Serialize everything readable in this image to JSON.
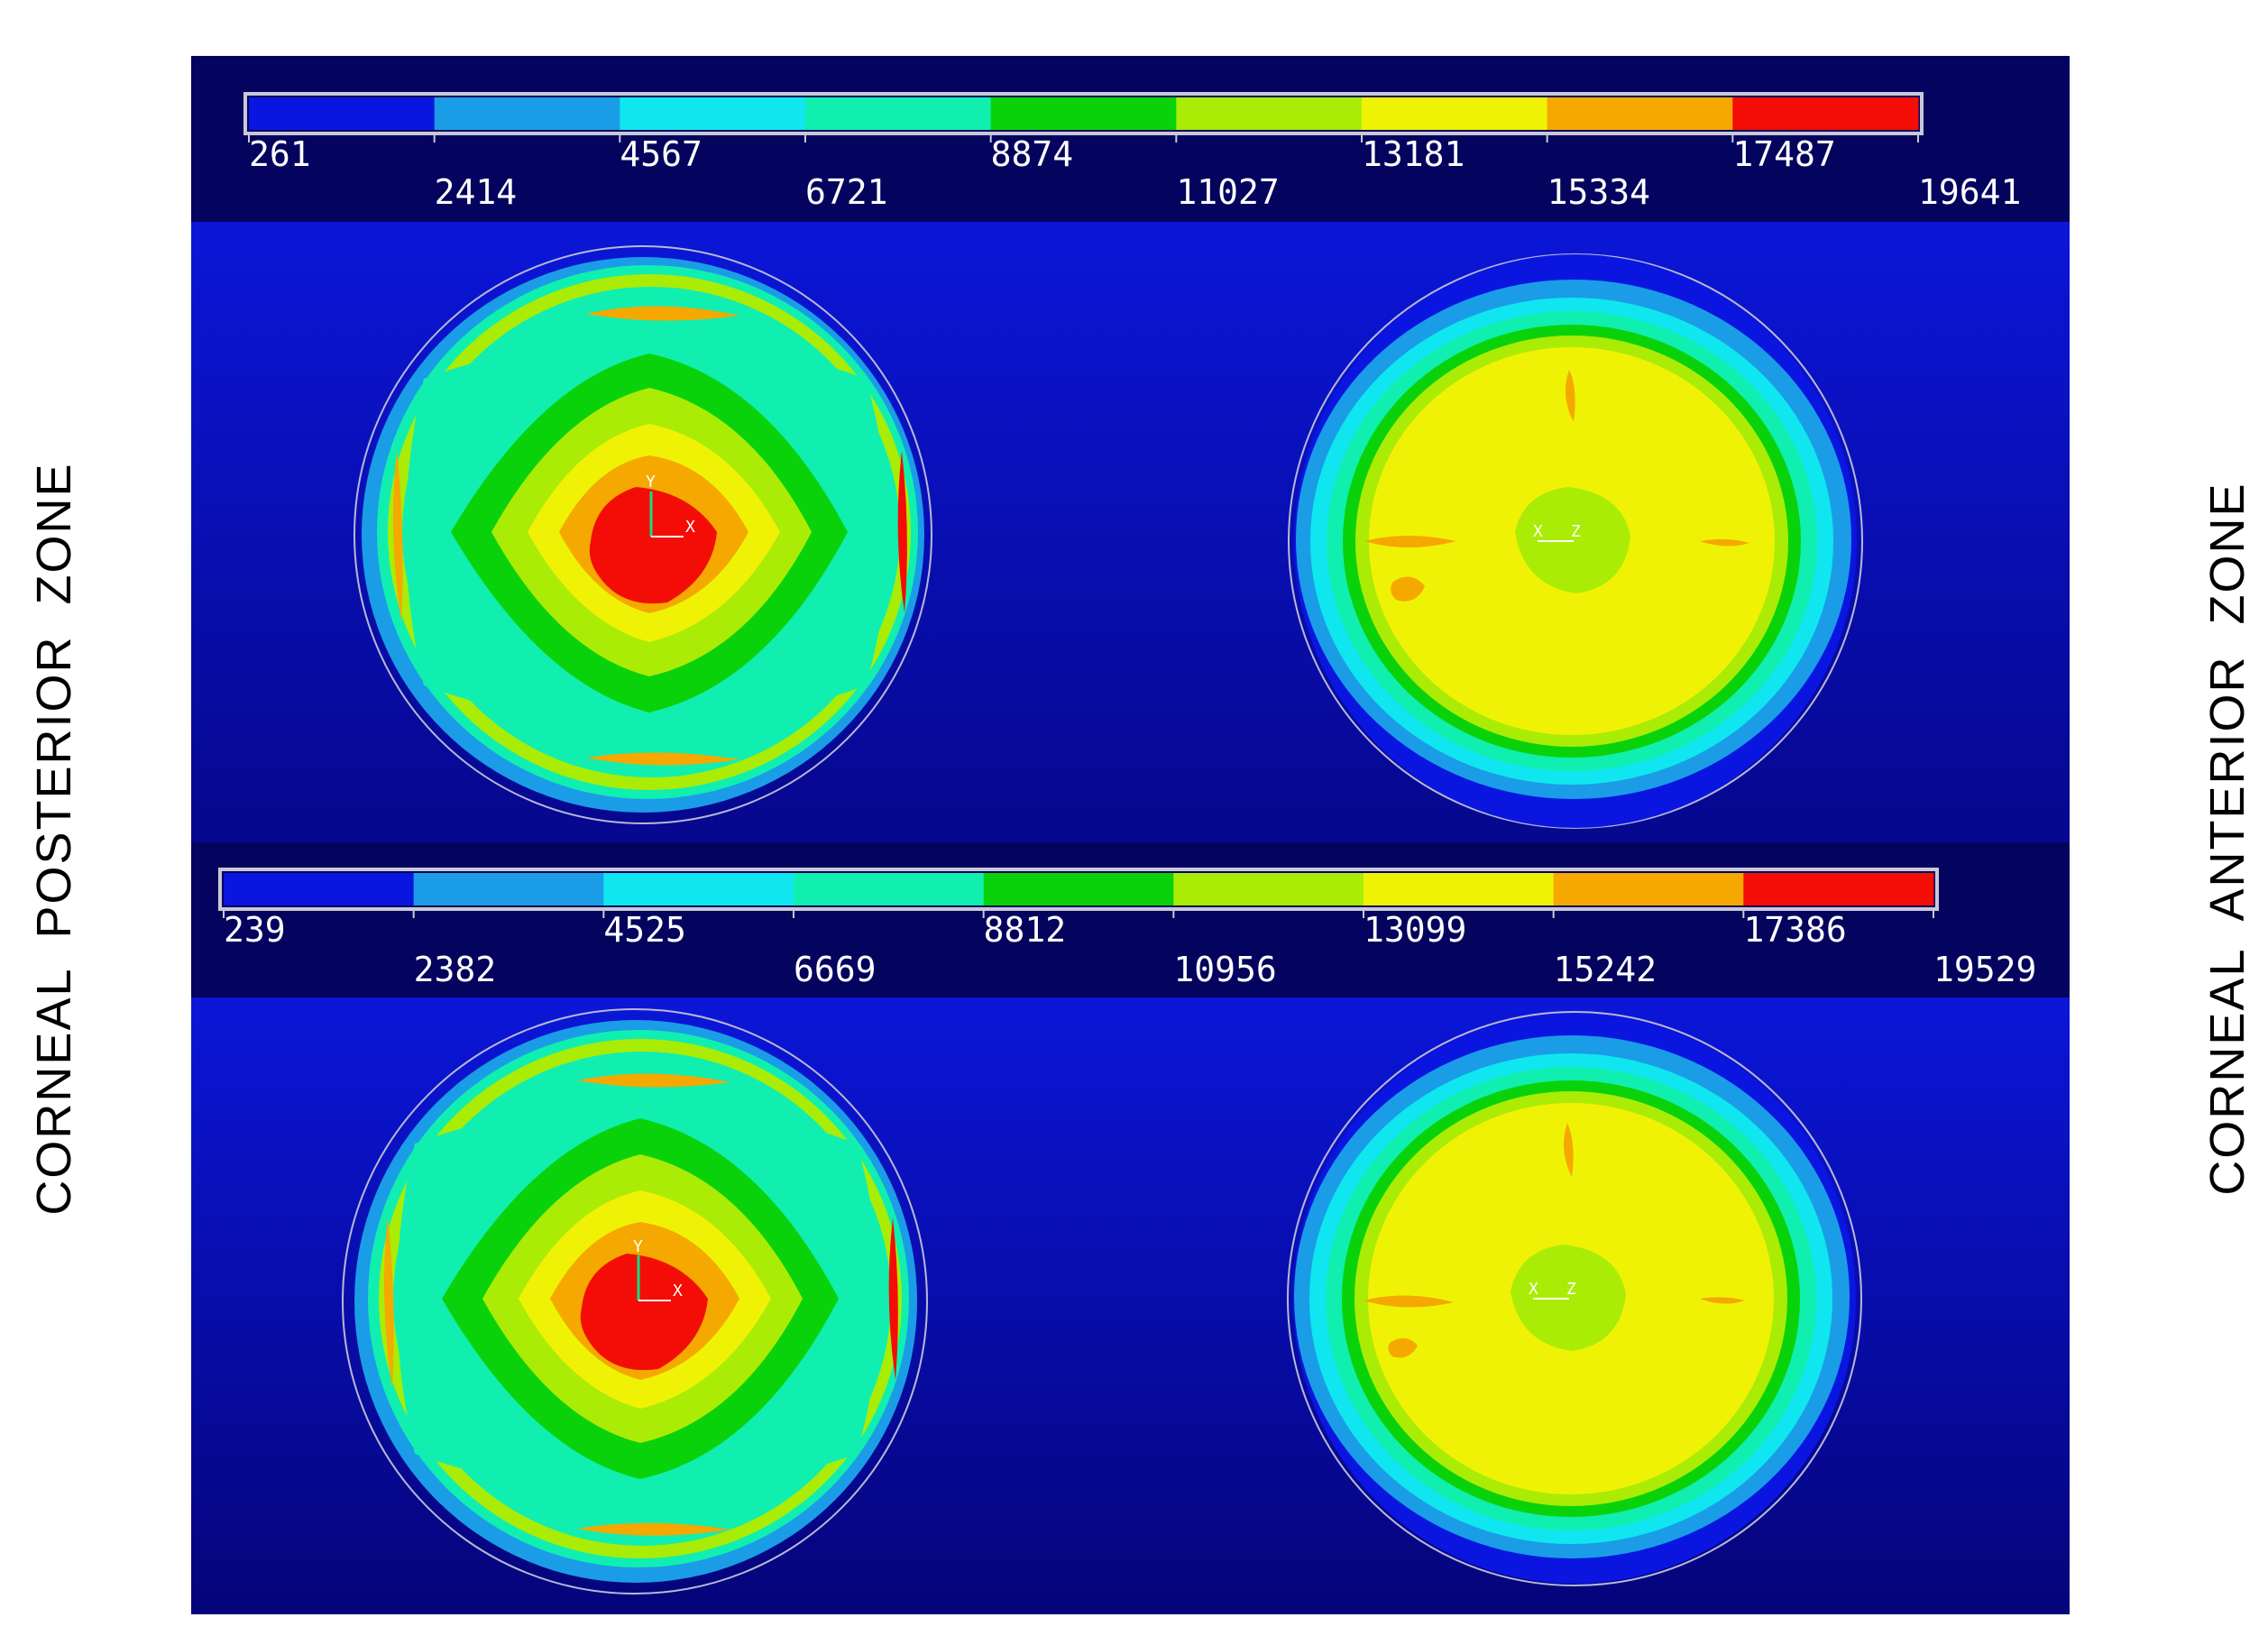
{
  "side_labels": {
    "left": "CORNEAL  POSTERIOR  ZONE",
    "right": "CORNEAL  ANTERIOR  ZONE"
  },
  "colors": {
    "dark_band": "#04035e",
    "field_blue": "#0b16d8",
    "bands": [
      "#0a16e0",
      "#1a9de6",
      "#10e6f0",
      "#10efb0",
      "#0ad20a",
      "#aaec06",
      "#f0f205",
      "#f5a800",
      "#f30d06"
    ]
  },
  "panels": [
    {
      "name": "top",
      "scale_labels": [
        "261",
        "2414",
        "4567",
        "6721",
        "8874",
        "11027",
        "13181",
        "15334",
        "17487",
        "19641"
      ]
    },
    {
      "name": "bottom",
      "scale_labels": [
        "239",
        "2382",
        "4525",
        "6669",
        "8812",
        "10956",
        "13099",
        "15242",
        "17386",
        "19529"
      ]
    }
  ],
  "axis_labels": {
    "x": "X",
    "y": "Y",
    "z": "Z"
  }
}
